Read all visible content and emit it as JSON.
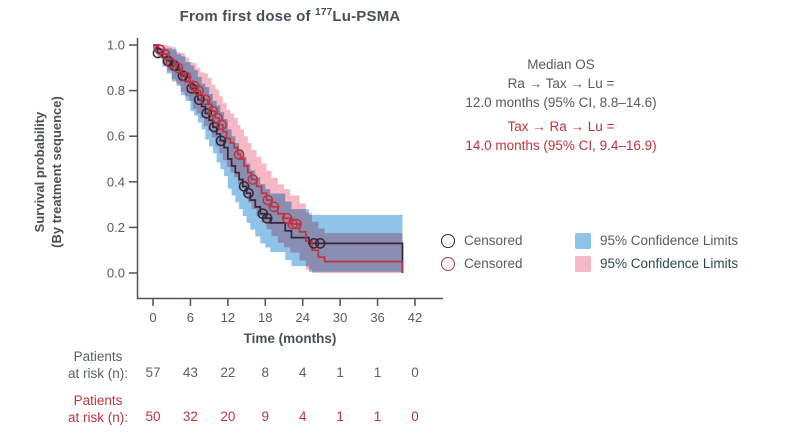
{
  "median_os": {
    "heading": "Median OS",
    "group1_label": "Ra → Tax → Lu =",
    "group1_value": "12.0 months (95% CI, 8.8–14.6)",
    "group2_label": "Tax → Ra → Lu =",
    "group2_value": "14.0 months (95% CI, 9.4–16.9)"
  },
  "legend": {
    "items": [
      {
        "marker": "circle",
        "color": "#362637",
        "label": "Censored",
        "text_color": "#575c63"
      },
      {
        "marker": "circle",
        "color": "#c0333f",
        "label": "Censored",
        "text_color": "#575c63"
      },
      {
        "marker": "square",
        "color": "#8fc3e8",
        "label": "95% Confidence Limits",
        "text_color": "#575c63"
      },
      {
        "marker": "square",
        "color": "#f6b8c4",
        "label": "95% Confidence Limits",
        "text_color": "#2c4a50"
      }
    ]
  },
  "chart_data": {
    "type": "line",
    "subtype": "kaplan-meier-step",
    "title_prefix": "From first dose of ",
    "title_isotope": "177",
    "title_suffix": "Lu-PSMA",
    "xlabel": "Time (months)",
    "ylabel_line1": "Survival probability",
    "ylabel_line2": "(By treatment sequence)",
    "x_ticks": [
      0,
      6,
      12,
      18,
      24,
      30,
      36,
      42
    ],
    "y_ticks": [
      "1.0",
      "0.8",
      "0.6",
      "0.4",
      "0.2",
      "0.0"
    ],
    "xlim": [
      0,
      44
    ],
    "ylim": [
      0.0,
      1.0
    ],
    "grid": false,
    "ci_half_width": [
      [
        0,
        0.02
      ],
      [
        1,
        0.04
      ],
      [
        2,
        0.055
      ],
      [
        3,
        0.07
      ],
      [
        4,
        0.085
      ],
      [
        6,
        0.1
      ],
      [
        8,
        0.115
      ],
      [
        10,
        0.125
      ],
      [
        12,
        0.13
      ],
      [
        18,
        0.128
      ],
      [
        22,
        0.125
      ],
      [
        40,
        0.125
      ]
    ],
    "series": [
      {
        "id": "ra-tax-lu",
        "name": "Ra → Tax → Lu",
        "color": "#362637",
        "band_color": "#8fc3e8",
        "median_months": 12.0,
        "ci_95": [
          8.8,
          14.6
        ],
        "end_drop": true,
        "steps": [
          [
            0,
            1.0
          ],
          [
            0.7,
            0.965
          ],
          [
            1.5,
            0.945
          ],
          [
            2.2,
            0.93
          ],
          [
            3.0,
            0.91
          ],
          [
            3.8,
            0.89
          ],
          [
            4.5,
            0.865
          ],
          [
            5.2,
            0.84
          ],
          [
            6.0,
            0.81
          ],
          [
            6.6,
            0.79
          ],
          [
            7.2,
            0.76
          ],
          [
            7.8,
            0.73
          ],
          [
            8.4,
            0.7
          ],
          [
            9.0,
            0.67
          ],
          [
            9.6,
            0.64
          ],
          [
            10.2,
            0.61
          ],
          [
            10.8,
            0.58
          ],
          [
            11.4,
            0.55
          ],
          [
            12.0,
            0.5
          ],
          [
            12.6,
            0.47
          ],
          [
            13.2,
            0.44
          ],
          [
            13.8,
            0.41
          ],
          [
            14.4,
            0.38
          ],
          [
            15.0,
            0.35
          ],
          [
            15.6,
            0.32
          ],
          [
            16.4,
            0.29
          ],
          [
            17.2,
            0.26
          ],
          [
            18.0,
            0.24
          ],
          [
            18.8,
            0.22
          ],
          [
            21.2,
            0.185
          ],
          [
            22.2,
            0.155
          ],
          [
            25.0,
            0.13
          ],
          [
            40,
            0.13
          ]
        ],
        "censored": [
          [
            0.8,
            0.965
          ],
          [
            2.4,
            0.93
          ],
          [
            3.4,
            0.91
          ],
          [
            4.8,
            0.865
          ],
          [
            6.2,
            0.81
          ],
          [
            7.4,
            0.76
          ],
          [
            8.6,
            0.7
          ],
          [
            9.8,
            0.64
          ],
          [
            10.9,
            0.58
          ],
          [
            14.6,
            0.38
          ],
          [
            15.3,
            0.35
          ],
          [
            17.6,
            0.26
          ],
          [
            18.3,
            0.24
          ],
          [
            25.8,
            0.13
          ],
          [
            26.8,
            0.13
          ]
        ]
      },
      {
        "id": "tax-ra-lu",
        "name": "Tax → Ra → Lu",
        "color": "#c0333f",
        "band_color": "#f6b8c4",
        "median_months": 14.0,
        "ci_95": [
          9.4,
          16.9
        ],
        "end_drop": true,
        "steps": [
          [
            0,
            1.0
          ],
          [
            0.9,
            0.98
          ],
          [
            1.6,
            0.96
          ],
          [
            2.3,
            0.94
          ],
          [
            3.0,
            0.92
          ],
          [
            3.7,
            0.9
          ],
          [
            4.4,
            0.88
          ],
          [
            5.1,
            0.86
          ],
          [
            5.8,
            0.84
          ],
          [
            6.4,
            0.82
          ],
          [
            7.0,
            0.8
          ],
          [
            7.6,
            0.78
          ],
          [
            8.2,
            0.76
          ],
          [
            8.8,
            0.74
          ],
          [
            9.4,
            0.71
          ],
          [
            10.0,
            0.68
          ],
          [
            10.6,
            0.65
          ],
          [
            11.2,
            0.62
          ],
          [
            11.8,
            0.59
          ],
          [
            12.4,
            0.57
          ],
          [
            13.0,
            0.55
          ],
          [
            13.6,
            0.52
          ],
          [
            14.0,
            0.5
          ],
          [
            14.6,
            0.47
          ],
          [
            15.2,
            0.44
          ],
          [
            15.8,
            0.41
          ],
          [
            16.6,
            0.38
          ],
          [
            17.4,
            0.35
          ],
          [
            18.2,
            0.32
          ],
          [
            19.0,
            0.29
          ],
          [
            20.0,
            0.26
          ],
          [
            21.0,
            0.24
          ],
          [
            22.0,
            0.215
          ],
          [
            23.5,
            0.18
          ],
          [
            24.5,
            0.14
          ],
          [
            25.5,
            0.1
          ],
          [
            26.5,
            0.07
          ],
          [
            27.5,
            0.05
          ],
          [
            40,
            0.05
          ]
        ],
        "censored": [
          [
            1.1,
            0.98
          ],
          [
            1.9,
            0.96
          ],
          [
            2.9,
            0.92
          ],
          [
            4.0,
            0.9
          ],
          [
            5.3,
            0.86
          ],
          [
            6.6,
            0.82
          ],
          [
            7.3,
            0.8
          ],
          [
            8.4,
            0.76
          ],
          [
            9.6,
            0.71
          ],
          [
            10.3,
            0.68
          ],
          [
            11.0,
            0.65
          ],
          [
            13.8,
            0.52
          ],
          [
            16.0,
            0.41
          ],
          [
            18.4,
            0.32
          ],
          [
            19.4,
            0.29
          ],
          [
            21.5,
            0.24
          ],
          [
            22.4,
            0.215
          ],
          [
            23.0,
            0.215
          ]
        ]
      }
    ],
    "risk_table": {
      "times": [
        0,
        6,
        12,
        18,
        24,
        30,
        36,
        42
      ],
      "rows": [
        {
          "label_line1": "Patients",
          "label_line2": "at risk (n):",
          "color": "#5a6066",
          "values": [
            57,
            43,
            22,
            8,
            4,
            1,
            1,
            0
          ]
        },
        {
          "label_line1": "Patients",
          "label_line2": "at risk (n):",
          "color": "#c0333f",
          "values": [
            50,
            32,
            20,
            9,
            4,
            1,
            1,
            0
          ]
        }
      ]
    }
  }
}
